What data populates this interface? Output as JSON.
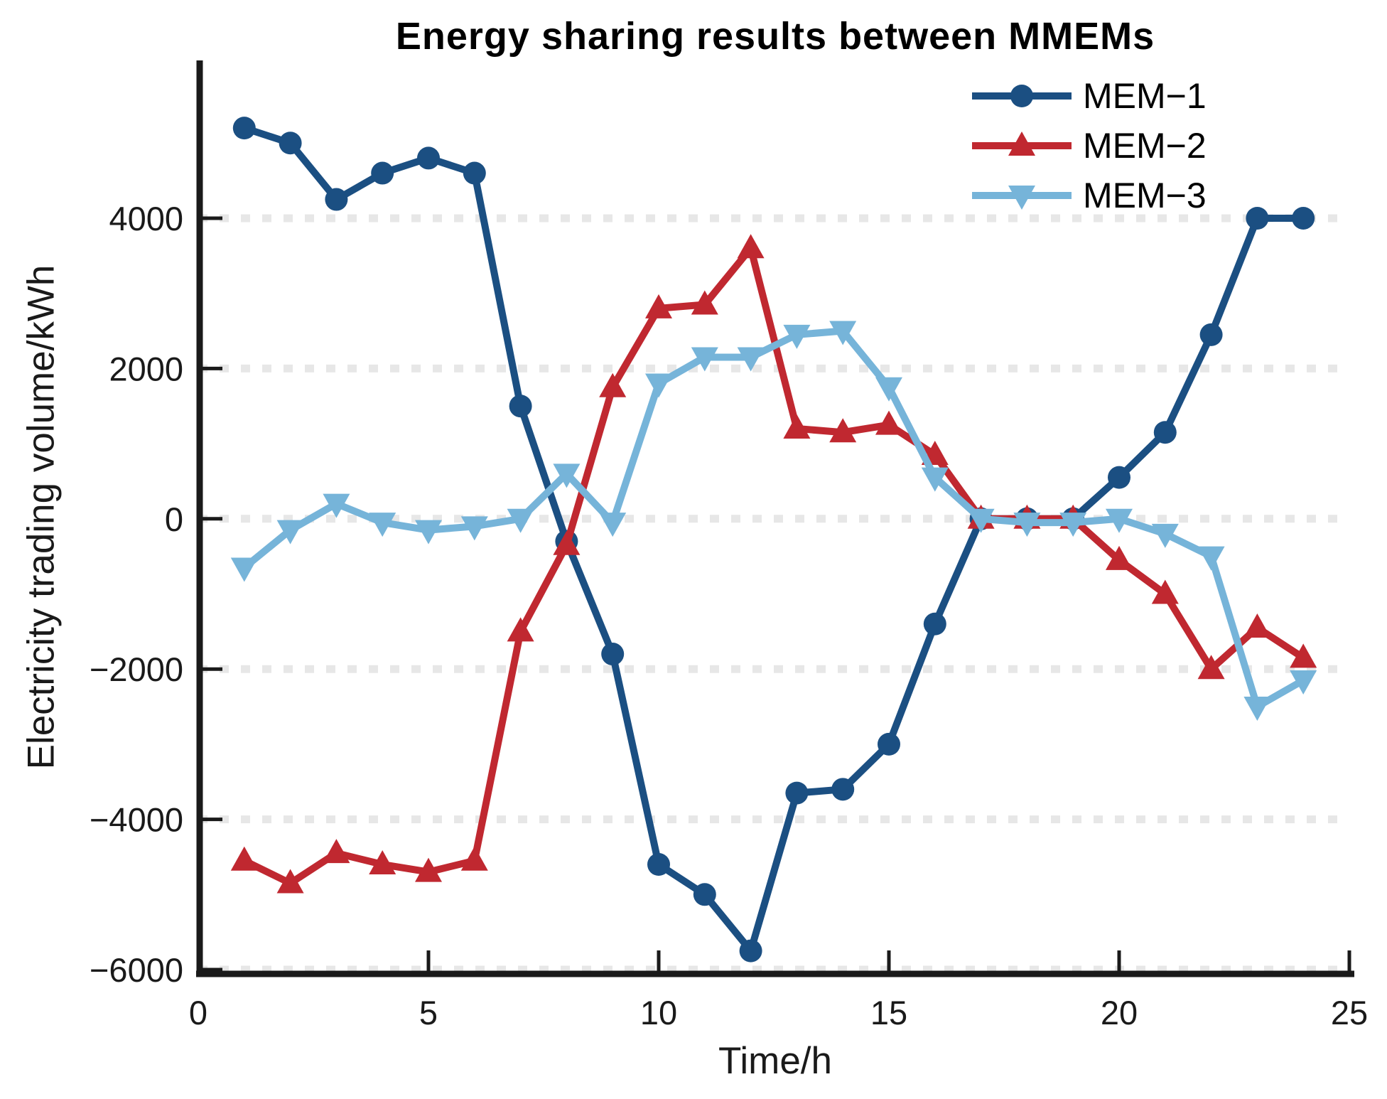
{
  "chart_data": {
    "type": "line",
    "title": "Energy sharing results between MMEMs",
    "xlabel": "Time/h",
    "ylabel": "Electricity trading volume/kWh",
    "x": [
      1,
      2,
      3,
      4,
      5,
      6,
      7,
      8,
      9,
      10,
      11,
      12,
      13,
      14,
      15,
      16,
      17,
      18,
      19,
      20,
      21,
      22,
      23,
      24
    ],
    "xlim": [
      0,
      25
    ],
    "ylim": [
      -6000,
      6100
    ],
    "x_ticks": [
      0,
      5,
      10,
      15,
      20,
      25
    ],
    "y_ticks": [
      4000,
      2000,
      0,
      -2000,
      -4000,
      -6000
    ],
    "grid": "horizontal dashed",
    "grid_color": "#e7e7e7",
    "axis_color": "#1a1a1a",
    "legend_position": "top-right inside, no box",
    "series": [
      {
        "name": "MEM-1",
        "color": "#1B4F82",
        "marker": "circle",
        "values": [
          5200,
          5000,
          4250,
          4600,
          4800,
          4600,
          1500,
          -300,
          -1800,
          -4600,
          -5000,
          -5750,
          -3650,
          -3600,
          -3000,
          -1400,
          0,
          0,
          0,
          550,
          1150,
          2450,
          4000,
          4000
        ]
      },
      {
        "name": "MEM-2",
        "color": "#C02830",
        "marker": "triangle-up",
        "values": [
          -4550,
          -4850,
          -4450,
          -4600,
          -4700,
          -4550,
          -1500,
          -350,
          1750,
          2800,
          2850,
          3600,
          1200,
          1150,
          1250,
          850,
          0,
          0,
          0,
          -550,
          -1000,
          -2000,
          -1450,
          -1850
        ]
      },
      {
        "name": "MEM-3",
        "color": "#76B4D9",
        "marker": "triangle-down",
        "values": [
          -650,
          -150,
          200,
          -50,
          -150,
          -100,
          0,
          600,
          -50,
          1800,
          2150,
          2150,
          2450,
          2500,
          1750,
          550,
          0,
          -50,
          -50,
          0,
          -200,
          -500,
          -2500,
          -2150
        ]
      }
    ]
  }
}
